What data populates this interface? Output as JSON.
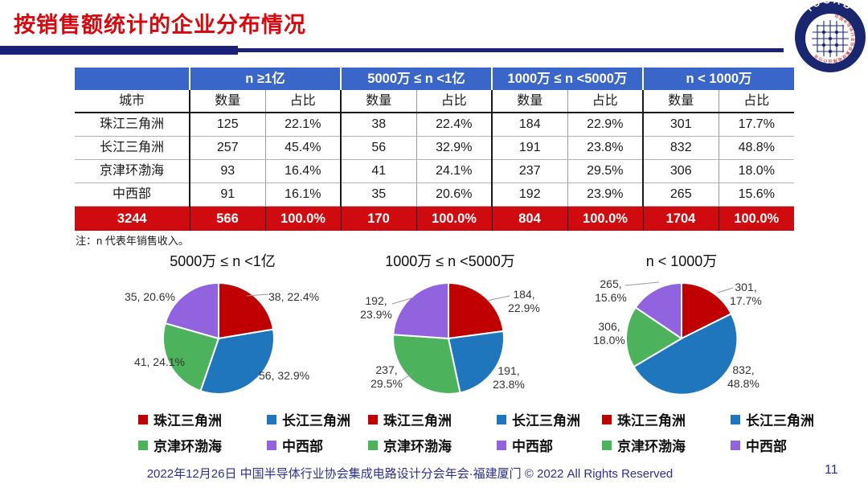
{
  "slide": {
    "title": "按销售额统计的企业分布情况",
    "note": "注：n 代表年销售收入。",
    "footer": "2022年12月26日 中国半导体行业协会集成电路设计分会年会·福建厦门 © 2022 All Rights Reserved",
    "page_number": "11"
  },
  "logo": {
    "name": "ICCAD",
    "ring_text": "中国半导体行业协会集成电路设计分会"
  },
  "colors": {
    "css": {
      "title-red": "#D40A10",
      "header-blue": "#3A65C9",
      "total-red": "#D00B10",
      "navy-bar": "#1A2177",
      "footer-text": "#2B2F90"
    },
    "pie_palette": [
      "#C00000",
      "#1F76BC",
      "#4CB35C",
      "#9163DE"
    ]
  },
  "table": {
    "city_header": "城市",
    "group_headers": [
      "n ≥1亿",
      "5000万 ≤ n <1亿",
      "1000万 ≤ n <5000万",
      "n < 1000万"
    ],
    "sub_headers": [
      "数量",
      "占比"
    ],
    "rows": [
      {
        "city": "珠江三角洲",
        "values": [
          "125",
          "22.1%",
          "38",
          "22.4%",
          "184",
          "22.9%",
          "301",
          "17.7%"
        ]
      },
      {
        "city": "长江三角洲",
        "values": [
          "257",
          "45.4%",
          "56",
          "32.9%",
          "191",
          "23.8%",
          "832",
          "48.8%"
        ]
      },
      {
        "city": "京津环渤海",
        "values": [
          "93",
          "16.4%",
          "41",
          "24.1%",
          "237",
          "29.5%",
          "306",
          "18.0%"
        ]
      },
      {
        "city": "中西部",
        "values": [
          "91",
          "16.1%",
          "35",
          "20.6%",
          "192",
          "23.9%",
          "265",
          "15.6%"
        ]
      }
    ],
    "total_row": {
      "city": "3244",
      "values": [
        "566",
        "100.0%",
        "170",
        "100.0%",
        "804",
        "100.0%",
        "1704",
        "100.0%"
      ]
    }
  },
  "chart_data": [
    {
      "type": "pie",
      "title": "5000万 ≤ n <1亿",
      "categories": [
        "珠江三角洲",
        "长江三角洲",
        "京津环渤海",
        "中西部"
      ],
      "values": [
        38,
        56,
        41,
        35
      ],
      "percents": [
        22.4,
        32.9,
        24.1,
        20.6
      ],
      "labels": [
        "38, 22.4%",
        "56, 32.9%",
        "41, 24.1%",
        "35, 20.6%"
      ],
      "colors": [
        "#C00000",
        "#1F76BC",
        "#4CB35C",
        "#9163DE"
      ],
      "legend_position": "bottom"
    },
    {
      "type": "pie",
      "title": "1000万 ≤ n <5000万",
      "categories": [
        "珠江三角洲",
        "长江三角洲",
        "京津环渤海",
        "中西部"
      ],
      "values": [
        184,
        191,
        237,
        192
      ],
      "percents": [
        22.9,
        23.8,
        29.5,
        23.9
      ],
      "labels": [
        "184,\n22.9%",
        "191,\n23.8%",
        "237,\n29.5%",
        "192,\n23.9%"
      ],
      "colors": [
        "#C00000",
        "#1F76BC",
        "#4CB35C",
        "#9163DE"
      ],
      "legend_position": "bottom"
    },
    {
      "type": "pie",
      "title": "n < 1000万",
      "categories": [
        "珠江三角洲",
        "长江三角洲",
        "京津环渤海",
        "中西部"
      ],
      "values": [
        301,
        832,
        306,
        265
      ],
      "percents": [
        17.7,
        48.8,
        18.0,
        15.6
      ],
      "labels": [
        "301,\n17.7%",
        "832,\n48.8%",
        "306,\n18.0%",
        "265,\n15.6%"
      ],
      "colors": [
        "#C00000",
        "#1F76BC",
        "#4CB35C",
        "#9163DE"
      ],
      "legend_position": "bottom"
    }
  ],
  "legend": {
    "items": [
      {
        "label": "珠江三角洲",
        "color": "#C00000"
      },
      {
        "label": "长江三角洲",
        "color": "#1F76BC"
      },
      {
        "label": "京津环渤海",
        "color": "#4CB35C"
      },
      {
        "label": "中西部",
        "color": "#9163DE"
      }
    ]
  }
}
